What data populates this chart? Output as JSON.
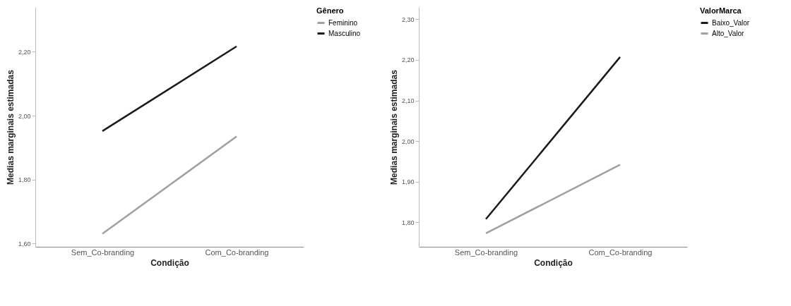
{
  "chart_data": [
    {
      "type": "line",
      "xlabel": "Condição",
      "ylabel": "Medias marginais estimadas",
      "legend_title": "Gênero",
      "legend": "top right",
      "grid": false,
      "line_style": "solid",
      "categories": [
        "Sem_Co-branding",
        "Com_Co-branding"
      ],
      "series": [
        {
          "name": "Feminino",
          "color": "#a0a0a0",
          "values": [
            1.631,
            1.935
          ]
        },
        {
          "name": "Masculino",
          "color": "#1a1a1a",
          "values": [
            1.952,
            2.217
          ]
        }
      ],
      "ylim": [
        1.59,
        2.34
      ],
      "yticks": [
        {
          "value": 1.6,
          "label": "1,60"
        },
        {
          "value": 1.8,
          "label": "1,80"
        },
        {
          "value": 2.0,
          "label": "2,00"
        },
        {
          "value": 2.2,
          "label": "2,20"
        }
      ]
    },
    {
      "type": "line",
      "xlabel": "Condição",
      "ylabel": "Medias marginais estimadas",
      "legend_title": "ValorMarca",
      "legend": "top right",
      "grid": false,
      "line_style": "solid",
      "categories": [
        "Sem_Co-branding",
        "Com_Co-branding"
      ],
      "series": [
        {
          "name": "Baixo_Valor",
          "color": "#1a1a1a",
          "values": [
            1.808,
            2.207
          ]
        },
        {
          "name": "Alto_Valor",
          "color": "#a0a0a0",
          "values": [
            1.773,
            1.942
          ]
        }
      ],
      "ylim": [
        1.74,
        2.33
      ],
      "yticks": [
        {
          "value": 1.8,
          "label": "1,80"
        },
        {
          "value": 1.9,
          "label": "1,90"
        },
        {
          "value": 2.0,
          "label": "2,00"
        },
        {
          "value": 2.1,
          "label": "2,10"
        },
        {
          "value": 2.2,
          "label": "2,20"
        },
        {
          "value": 2.3,
          "label": "2,30"
        }
      ]
    }
  ]
}
